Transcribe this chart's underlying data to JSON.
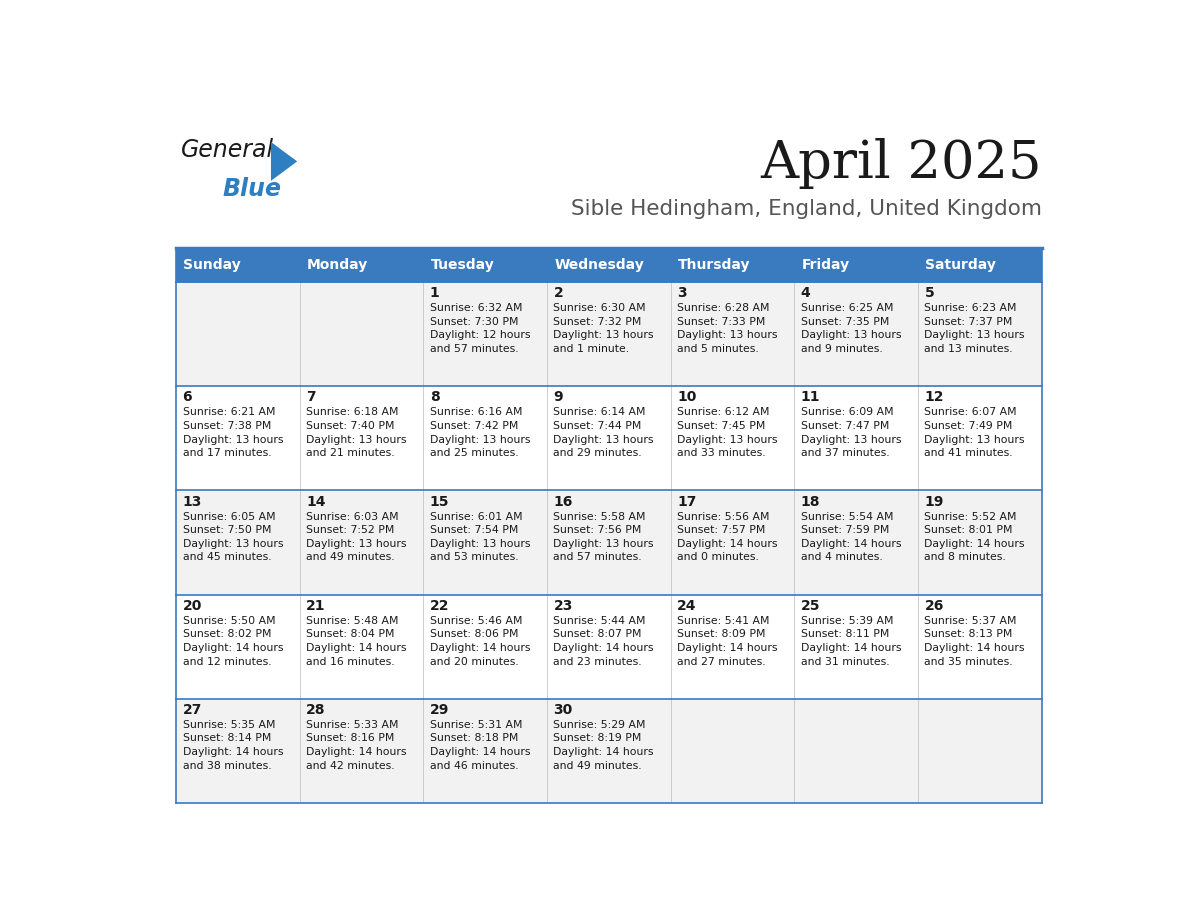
{
  "title": "April 2025",
  "subtitle": "Sible Hedingham, England, United Kingdom",
  "header_bg": "#3a7abf",
  "header_text_color": "#ffffff",
  "row_bg_odd": "#f2f2f2",
  "row_bg_even": "#ffffff",
  "border_color": "#3a7abf",
  "day_headers": [
    "Sunday",
    "Monday",
    "Tuesday",
    "Wednesday",
    "Thursday",
    "Friday",
    "Saturday"
  ],
  "weeks": [
    [
      {
        "day": "",
        "info": ""
      },
      {
        "day": "",
        "info": ""
      },
      {
        "day": "1",
        "info": "Sunrise: 6:32 AM\nSunset: 7:30 PM\nDaylight: 12 hours\nand 57 minutes."
      },
      {
        "day": "2",
        "info": "Sunrise: 6:30 AM\nSunset: 7:32 PM\nDaylight: 13 hours\nand 1 minute."
      },
      {
        "day": "3",
        "info": "Sunrise: 6:28 AM\nSunset: 7:33 PM\nDaylight: 13 hours\nand 5 minutes."
      },
      {
        "day": "4",
        "info": "Sunrise: 6:25 AM\nSunset: 7:35 PM\nDaylight: 13 hours\nand 9 minutes."
      },
      {
        "day": "5",
        "info": "Sunrise: 6:23 AM\nSunset: 7:37 PM\nDaylight: 13 hours\nand 13 minutes."
      }
    ],
    [
      {
        "day": "6",
        "info": "Sunrise: 6:21 AM\nSunset: 7:38 PM\nDaylight: 13 hours\nand 17 minutes."
      },
      {
        "day": "7",
        "info": "Sunrise: 6:18 AM\nSunset: 7:40 PM\nDaylight: 13 hours\nand 21 minutes."
      },
      {
        "day": "8",
        "info": "Sunrise: 6:16 AM\nSunset: 7:42 PM\nDaylight: 13 hours\nand 25 minutes."
      },
      {
        "day": "9",
        "info": "Sunrise: 6:14 AM\nSunset: 7:44 PM\nDaylight: 13 hours\nand 29 minutes."
      },
      {
        "day": "10",
        "info": "Sunrise: 6:12 AM\nSunset: 7:45 PM\nDaylight: 13 hours\nand 33 minutes."
      },
      {
        "day": "11",
        "info": "Sunrise: 6:09 AM\nSunset: 7:47 PM\nDaylight: 13 hours\nand 37 minutes."
      },
      {
        "day": "12",
        "info": "Sunrise: 6:07 AM\nSunset: 7:49 PM\nDaylight: 13 hours\nand 41 minutes."
      }
    ],
    [
      {
        "day": "13",
        "info": "Sunrise: 6:05 AM\nSunset: 7:50 PM\nDaylight: 13 hours\nand 45 minutes."
      },
      {
        "day": "14",
        "info": "Sunrise: 6:03 AM\nSunset: 7:52 PM\nDaylight: 13 hours\nand 49 minutes."
      },
      {
        "day": "15",
        "info": "Sunrise: 6:01 AM\nSunset: 7:54 PM\nDaylight: 13 hours\nand 53 minutes."
      },
      {
        "day": "16",
        "info": "Sunrise: 5:58 AM\nSunset: 7:56 PM\nDaylight: 13 hours\nand 57 minutes."
      },
      {
        "day": "17",
        "info": "Sunrise: 5:56 AM\nSunset: 7:57 PM\nDaylight: 14 hours\nand 0 minutes."
      },
      {
        "day": "18",
        "info": "Sunrise: 5:54 AM\nSunset: 7:59 PM\nDaylight: 14 hours\nand 4 minutes."
      },
      {
        "day": "19",
        "info": "Sunrise: 5:52 AM\nSunset: 8:01 PM\nDaylight: 14 hours\nand 8 minutes."
      }
    ],
    [
      {
        "day": "20",
        "info": "Sunrise: 5:50 AM\nSunset: 8:02 PM\nDaylight: 14 hours\nand 12 minutes."
      },
      {
        "day": "21",
        "info": "Sunrise: 5:48 AM\nSunset: 8:04 PM\nDaylight: 14 hours\nand 16 minutes."
      },
      {
        "day": "22",
        "info": "Sunrise: 5:46 AM\nSunset: 8:06 PM\nDaylight: 14 hours\nand 20 minutes."
      },
      {
        "day": "23",
        "info": "Sunrise: 5:44 AM\nSunset: 8:07 PM\nDaylight: 14 hours\nand 23 minutes."
      },
      {
        "day": "24",
        "info": "Sunrise: 5:41 AM\nSunset: 8:09 PM\nDaylight: 14 hours\nand 27 minutes."
      },
      {
        "day": "25",
        "info": "Sunrise: 5:39 AM\nSunset: 8:11 PM\nDaylight: 14 hours\nand 31 minutes."
      },
      {
        "day": "26",
        "info": "Sunrise: 5:37 AM\nSunset: 8:13 PM\nDaylight: 14 hours\nand 35 minutes."
      }
    ],
    [
      {
        "day": "27",
        "info": "Sunrise: 5:35 AM\nSunset: 8:14 PM\nDaylight: 14 hours\nand 38 minutes."
      },
      {
        "day": "28",
        "info": "Sunrise: 5:33 AM\nSunset: 8:16 PM\nDaylight: 14 hours\nand 42 minutes."
      },
      {
        "day": "29",
        "info": "Sunrise: 5:31 AM\nSunset: 8:18 PM\nDaylight: 14 hours\nand 46 minutes."
      },
      {
        "day": "30",
        "info": "Sunrise: 5:29 AM\nSunset: 8:19 PM\nDaylight: 14 hours\nand 49 minutes."
      },
      {
        "day": "",
        "info": ""
      },
      {
        "day": "",
        "info": ""
      },
      {
        "day": "",
        "info": ""
      }
    ]
  ],
  "logo_general_color": "#1a1a1a",
  "logo_blue_color": "#2e7fc1",
  "logo_triangle_color": "#2e7fc1"
}
